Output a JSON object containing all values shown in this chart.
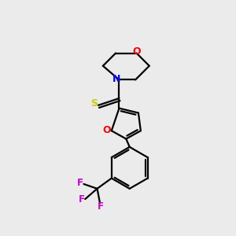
{
  "background_color": "#ebebeb",
  "bond_color": "#000000",
  "N_color": "#0000ff",
  "O_color": "#ff0000",
  "S_color": "#cccc00",
  "F_color": "#cc00cc",
  "line_width": 1.6,
  "figsize": [
    3.0,
    3.0
  ],
  "dpi": 100,
  "xlim": [
    0,
    10
  ],
  "ylim": [
    0,
    10
  ]
}
